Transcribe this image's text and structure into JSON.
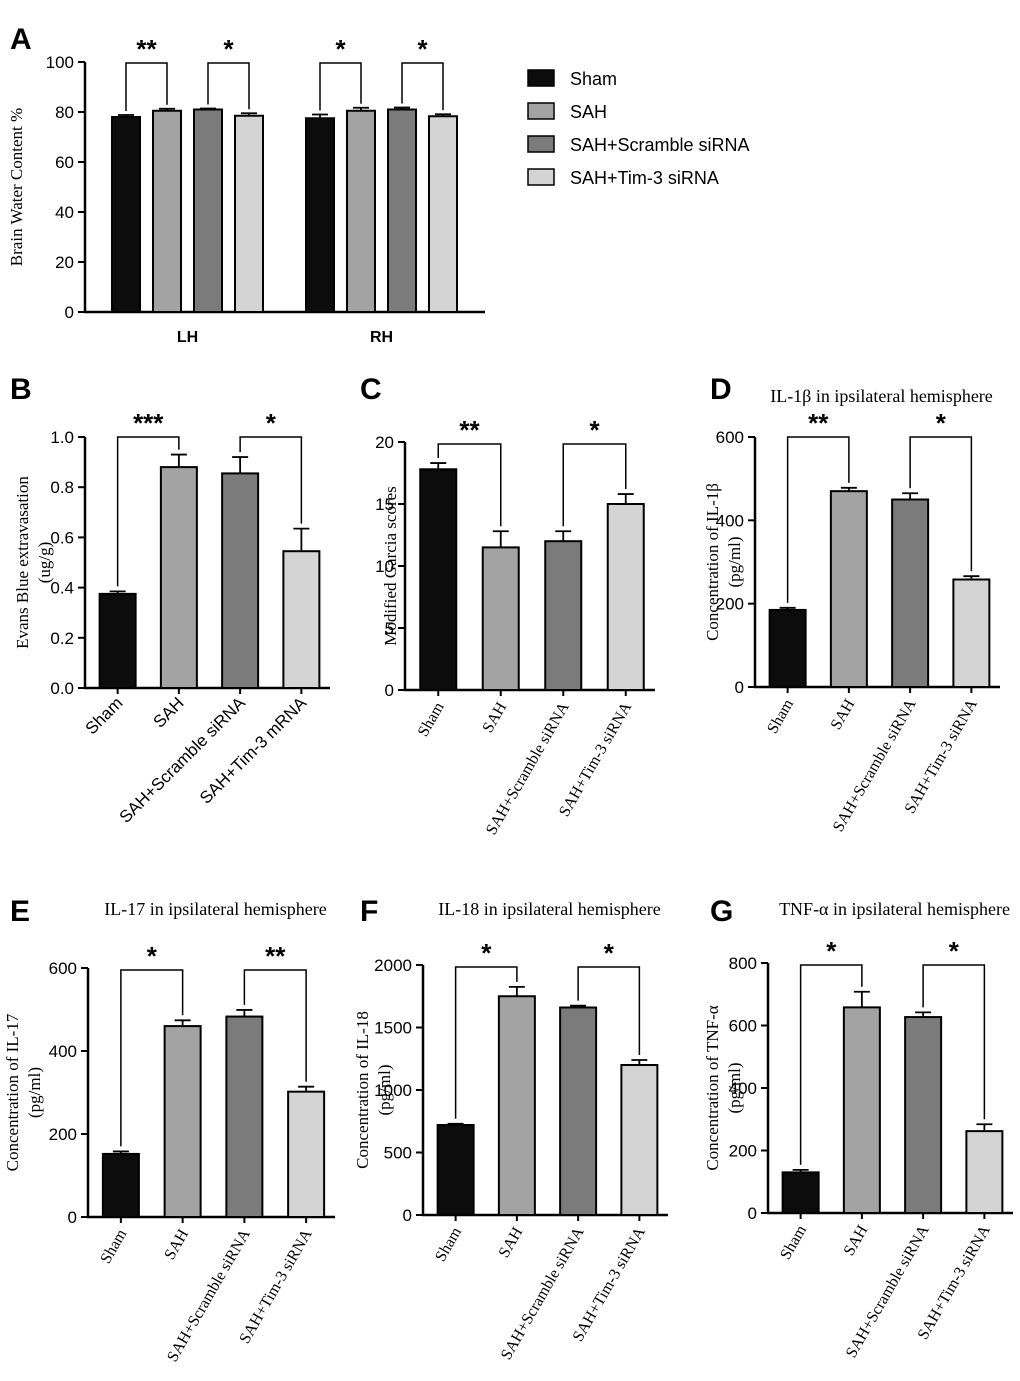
{
  "figure": {
    "colors": {
      "Sham": "#0c0c0c",
      "SAH": "#a3a3a3",
      "SAH+Scramble siRNA": "#7b7b7b",
      "SAH+Tim-3 siRNA": "#d4d4d4",
      "axis": "#000000",
      "background": "#ffffff"
    },
    "legend": [
      "Sham",
      "SAH",
      "SAH+Scramble siRNA",
      "SAH+Tim-3 siRNA"
    ]
  },
  "chart_data": [
    {
      "panel": "A",
      "type": "bar",
      "title": "",
      "xlabel": "",
      "ylabel": "Brain Water Content %",
      "ylim": [
        0,
        100
      ],
      "yticks": [
        "0",
        "20",
        "40",
        "60",
        "80",
        "100"
      ],
      "categories": [
        "LH",
        "RH"
      ],
      "series": [
        {
          "name": "Sham",
          "values": [
            78,
            77.5
          ],
          "errors": [
            0.8,
            1.5
          ]
        },
        {
          "name": "SAH",
          "values": [
            80.5,
            80.5
          ],
          "errors": [
            0.8,
            1.2
          ]
        },
        {
          "name": "SAH+Scramble siRNA",
          "values": [
            81,
            81
          ],
          "errors": [
            0.4,
            0.8
          ]
        },
        {
          "name": "SAH+Tim-3 siRNA",
          "values": [
            78.5,
            78.3
          ],
          "errors": [
            1.0,
            0.8
          ]
        }
      ],
      "significance": [
        {
          "cat": 0,
          "from": 0,
          "to": 1,
          "label": "**"
        },
        {
          "cat": 0,
          "from": 2,
          "to": 3,
          "label": "*"
        },
        {
          "cat": 1,
          "from": 0,
          "to": 1,
          "label": "*"
        },
        {
          "cat": 1,
          "from": 2,
          "to": 3,
          "label": "*"
        }
      ],
      "legend_position": "right"
    },
    {
      "panel": "B",
      "type": "bar",
      "title": "",
      "xlabel": "",
      "ylabel": "Evans Blue extravasation",
      "yunit": "(ug/g)",
      "ylim": [
        0,
        1.0
      ],
      "yticks": [
        "0.0",
        "0.2",
        "0.4",
        "0.6",
        "0.8",
        "1.0"
      ],
      "categories": [
        "Sham",
        "SAH",
        "SAH+Scramble siRNA",
        "SAH+Tim-3 mRNA"
      ],
      "values": [
        0.375,
        0.88,
        0.855,
        0.545
      ],
      "errors": [
        0.01,
        0.05,
        0.065,
        0.09
      ],
      "significance": [
        {
          "from": 0,
          "to": 1,
          "label": "***"
        },
        {
          "from": 2,
          "to": 3,
          "label": "*"
        }
      ]
    },
    {
      "panel": "C",
      "type": "bar",
      "title": "",
      "xlabel": "",
      "ylabel": "Modified Garcia scores",
      "ylim": [
        0,
        20
      ],
      "yticks": [
        "0",
        "5",
        "10",
        "15",
        "20"
      ],
      "categories": [
        "Sham",
        "SAH",
        "SAH+Scramble siRNA",
        "SAH+Tim-3 siRNA"
      ],
      "values": [
        17.8,
        11.5,
        12,
        15
      ],
      "errors": [
        0.5,
        1.3,
        0.8,
        0.8
      ],
      "significance": [
        {
          "from": 0,
          "to": 1,
          "label": "**"
        },
        {
          "from": 2,
          "to": 3,
          "label": "*"
        }
      ]
    },
    {
      "panel": "D",
      "type": "bar",
      "title": "IL-1β in ipsilateral hemisphere",
      "xlabel": "",
      "ylabel": "Concentration of IL-1β",
      "yunit": "(pg/ml)",
      "ylim": [
        0,
        600
      ],
      "yticks": [
        "0",
        "200",
        "400",
        "600"
      ],
      "categories": [
        "Sham",
        "SAH",
        "SAH+Scramble siRNA",
        "SAH+Tim-3 siRNA"
      ],
      "values": [
        185,
        470,
        450,
        258
      ],
      "errors": [
        5,
        8,
        15,
        8
      ],
      "significance": [
        {
          "from": 0,
          "to": 1,
          "label": "**"
        },
        {
          "from": 2,
          "to": 3,
          "label": "*"
        }
      ]
    },
    {
      "panel": "E",
      "type": "bar",
      "title": "IL-17 in ipsilateral hemisphere",
      "xlabel": "",
      "ylabel": "Concentration of IL-17",
      "yunit": "(pg/ml)",
      "ylim": [
        0,
        600
      ],
      "yticks": [
        "0",
        "200",
        "400",
        "600"
      ],
      "categories": [
        "Sham",
        "SAH",
        "SAH+Scramble siRNA",
        "SAH+Tim-3 siRNA"
      ],
      "values": [
        152,
        460,
        483,
        302
      ],
      "errors": [
        6,
        14,
        16,
        12
      ],
      "significance": [
        {
          "from": 0,
          "to": 1,
          "label": "*"
        },
        {
          "from": 2,
          "to": 3,
          "label": "**"
        }
      ]
    },
    {
      "panel": "F",
      "type": "bar",
      "title": "IL-18 in ipsilateral hemisphere",
      "xlabel": "",
      "ylabel": "Concentration of IL-18",
      "yunit": "(pg/ml)",
      "ylim": [
        0,
        2000
      ],
      "yticks": [
        "0",
        "500",
        "1000",
        "1500",
        "2000"
      ],
      "categories": [
        "Sham",
        "SAH",
        "SAH+Scramble siRNA",
        "SAH+Tim-3 siRNA"
      ],
      "values": [
        720,
        1750,
        1660,
        1200
      ],
      "errors": [
        10,
        75,
        15,
        40
      ],
      "significance": [
        {
          "from": 0,
          "to": 1,
          "label": "*"
        },
        {
          "from": 2,
          "to": 3,
          "label": "*"
        }
      ]
    },
    {
      "panel": "G",
      "type": "bar",
      "title": "TNF-α in ipsilateral hemisphere",
      "xlabel": "",
      "ylabel": "Concentration of TNF-α",
      "yunit": "(pg/ml)",
      "ylim": [
        0,
        800
      ],
      "yticks": [
        "0",
        "200",
        "400",
        "600",
        "800"
      ],
      "categories": [
        "Sham",
        "SAH",
        "SAH+Scramble siRNA",
        "SAH+Tim-3 siRNA"
      ],
      "values": [
        130,
        658,
        627,
        262
      ],
      "errors": [
        8,
        50,
        15,
        22
      ],
      "significance": [
        {
          "from": 0,
          "to": 1,
          "label": "*"
        },
        {
          "from": 2,
          "to": 3,
          "label": "*"
        }
      ]
    }
  ]
}
